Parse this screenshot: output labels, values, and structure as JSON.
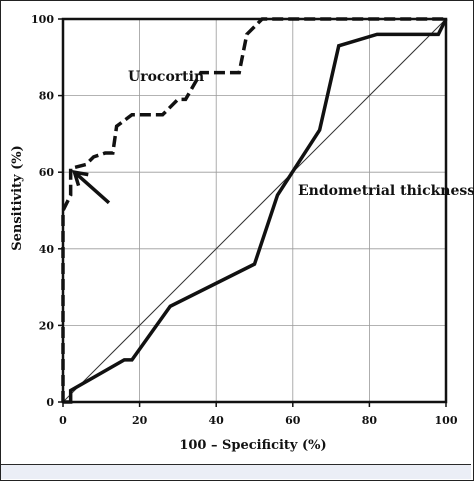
{
  "chart_data": {
    "type": "line",
    "xlabel": "100 – Specificity (%)",
    "ylabel": "Sensitivity (%)",
    "xlim": [
      0,
      100
    ],
    "ylim": [
      0,
      100
    ],
    "x_ticks": [
      0,
      20,
      40,
      60,
      80,
      100
    ],
    "y_ticks": [
      0,
      20,
      40,
      60,
      80,
      100
    ],
    "x_tick_labels": [
      "0",
      "20",
      "40",
      "60",
      "80",
      "100"
    ],
    "y_tick_labels": [
      "0",
      "20",
      "40",
      "60",
      "80",
      "100"
    ],
    "grid": true,
    "series": [
      {
        "name": "Urocortin",
        "style": "dashed",
        "color": "#111111",
        "x": [
          0,
          0,
          2,
          2,
          6,
          8,
          11,
          13,
          14,
          18,
          22,
          26,
          30,
          32,
          36,
          38,
          46,
          48,
          52,
          100
        ],
        "y": [
          0,
          50,
          54,
          61,
          62,
          64,
          65,
          65,
          72,
          75,
          75,
          75,
          79,
          79,
          86,
          86,
          86,
          96,
          100,
          100
        ]
      },
      {
        "name": "Endometrial thickness",
        "style": "solid",
        "color": "#111111",
        "x": [
          0,
          2,
          2,
          16,
          18,
          28,
          50,
          55,
          56,
          67,
          72,
          82,
          98,
          100
        ],
        "y": [
          0,
          0,
          3,
          11,
          11,
          25,
          36,
          51,
          54,
          71,
          93,
          96,
          96,
          100
        ]
      },
      {
        "name": "",
        "style": "thin",
        "color": "#333333",
        "x": [
          0,
          100
        ],
        "y": [
          0,
          100
        ]
      }
    ],
    "annotations": [
      {
        "text": "arrow",
        "x_from": 12,
        "y_from": 52,
        "x_to": 3,
        "y_to": 60
      }
    ]
  },
  "colors": {
    "band": "#ebeef6",
    "ink": "#111111"
  }
}
